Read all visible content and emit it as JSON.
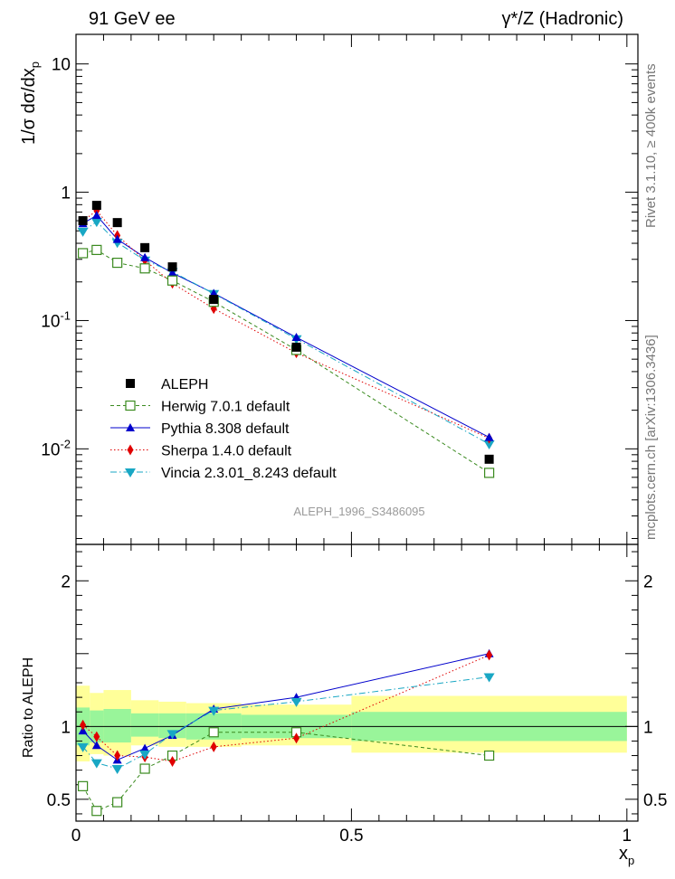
{
  "header": {
    "left": "91 GeV ee",
    "right": "γ*/Z (Hadronic)"
  },
  "side": {
    "rivet": "Rivet 3.1.10, ≥ 400k events",
    "site": "mcplots.cern.ch [arXiv:1306.3436]"
  },
  "watermark": "ALEPH_1996_S3486095",
  "colors": {
    "ALEPH": "#000000",
    "Herwig": "#3a8a1f",
    "Pythia": "#0000cc",
    "Sherpa": "#e00000",
    "Vincia": "#19a7c4",
    "band_inner": "#99f59a",
    "band_outer": "#ffff99"
  },
  "chart_data": [
    {
      "type": "scatter",
      "title": "",
      "xlabel": "",
      "ylabel": "1/σ dσ/dx_p",
      "yscale": "log",
      "xlim": [
        0,
        1.02
      ],
      "ylim": [
        0.0018,
        17
      ],
      "ytick_labels": [
        "10",
        "1",
        "10^-1",
        "10^-2"
      ],
      "ytick_values": [
        10,
        1,
        0.1,
        0.01
      ],
      "legend_position": "middle-left",
      "x": [
        0.0125,
        0.0375,
        0.075,
        0.125,
        0.175,
        0.25,
        0.4,
        0.75
      ],
      "series": [
        {
          "name": "ALEPH",
          "key": "ALEPH",
          "marker": "square",
          "values": [
            0.6,
            0.79,
            0.58,
            0.37,
            0.262,
            0.146,
            0.062,
            0.0083
          ]
        },
        {
          "name": "Herwig 7.0.1 default",
          "key": "Herwig",
          "marker": "open-square",
          "line": "dashed",
          "values": [
            0.335,
            0.355,
            0.282,
            0.255,
            0.205,
            0.14,
            0.059,
            0.0065
          ]
        },
        {
          "name": "Pythia 8.308 default",
          "key": "Pythia",
          "marker": "triangle-up",
          "line": "solid",
          "values": [
            0.57,
            0.66,
            0.43,
            0.31,
            0.235,
            0.163,
            0.074,
            0.0123
          ]
        },
        {
          "name": "Sherpa 1.4.0 default",
          "key": "Sherpa",
          "marker": "diamond",
          "line": "dotted",
          "values": [
            0.595,
            0.72,
            0.46,
            0.295,
            0.195,
            0.124,
            0.056,
            0.0121
          ]
        },
        {
          "name": "Vincia 2.3.01_8.243 default",
          "key": "Vincia",
          "marker": "triangle-down",
          "line": "dashdot",
          "values": [
            0.495,
            0.59,
            0.405,
            0.295,
            0.24,
            0.162,
            0.072,
            0.0109
          ]
        }
      ]
    },
    {
      "type": "line",
      "title": "",
      "xlabel": "x_p",
      "ylabel": "Ratio to ALEPH",
      "xlim": [
        0,
        1.02
      ],
      "ylim": [
        0.35,
        2.25
      ],
      "xtick_labels": [
        "0",
        "0.5",
        "1"
      ],
      "xtick_values": [
        0,
        0.5,
        1
      ],
      "ytick_labels": [
        "2",
        "1",
        "0.5"
      ],
      "ytick_values": [
        2,
        1,
        0.5
      ],
      "x": [
        0.0125,
        0.0375,
        0.075,
        0.125,
        0.175,
        0.25,
        0.4,
        0.75
      ],
      "bands": {
        "x_edges": [
          0,
          0.025,
          0.05,
          0.1,
          0.15,
          0.2,
          0.3,
          0.5,
          1
        ],
        "inner": [
          [
            0.87,
            1.13
          ],
          [
            0.89,
            1.11
          ],
          [
            0.89,
            1.12
          ],
          [
            0.93,
            1.09
          ],
          [
            0.92,
            1.09
          ],
          [
            0.91,
            1.09
          ],
          [
            0.92,
            1.08
          ],
          [
            0.9,
            1.1
          ]
        ],
        "outer": [
          [
            0.76,
            1.28
          ],
          [
            0.81,
            1.23
          ],
          [
            0.8,
            1.25
          ],
          [
            0.87,
            1.18
          ],
          [
            0.86,
            1.17
          ],
          [
            0.86,
            1.16
          ],
          [
            0.87,
            1.15
          ],
          [
            0.82,
            1.21
          ]
        ]
      },
      "series": [
        {
          "name": "Herwig 7.0.1 default",
          "key": "Herwig",
          "marker": "open-square",
          "line": "dashed",
          "values": [
            0.59,
            0.42,
            0.48,
            0.71,
            0.8,
            0.96,
            0.96,
            0.8
          ]
        },
        {
          "name": "Pythia 8.308 default",
          "key": "Pythia",
          "marker": "triangle-up",
          "line": "solid",
          "values": [
            0.97,
            0.87,
            0.77,
            0.85,
            0.94,
            1.12,
            1.2,
            1.5
          ]
        },
        {
          "name": "Sherpa 1.4.0 default",
          "key": "Sherpa",
          "marker": "diamond",
          "line": "dotted",
          "values": [
            1.01,
            0.93,
            0.8,
            0.79,
            0.76,
            0.86,
            0.92,
            1.49
          ]
        },
        {
          "name": "Vincia 2.3.01_8.243 default",
          "key": "Vincia",
          "marker": "triangle-down",
          "line": "dashdot",
          "values": [
            0.86,
            0.75,
            0.71,
            0.81,
            0.95,
            1.11,
            1.17,
            1.34
          ]
        }
      ]
    }
  ]
}
